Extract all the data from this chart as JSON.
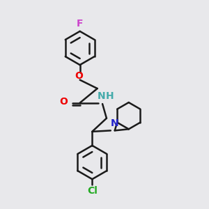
{
  "bg_color": "#e8e8eb",
  "bond_color": "#1a1a1a",
  "bond_width": 1.8,
  "atom_colors": {
    "F": "#cc44cc",
    "O": "#ee0000",
    "N_amide": "#44aaaa",
    "H": "#44aaaa",
    "N_pip": "#2222cc",
    "Cl": "#22aa22"
  },
  "font_size": 10,
  "fig_size": [
    3.0,
    3.0
  ],
  "dpi": 100
}
